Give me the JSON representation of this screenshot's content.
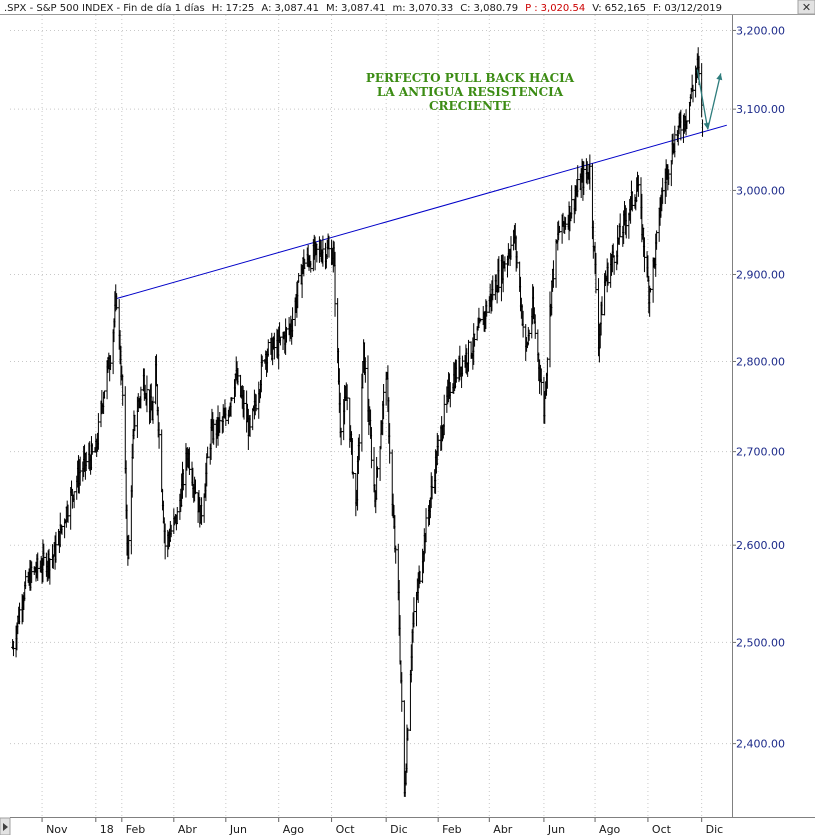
{
  "header": {
    "symbol": ".SPX - S&P 500 INDEX - Fin de día 1 días",
    "fields": [
      {
        "label": "H:",
        "value": "17:25",
        "red": false
      },
      {
        "label": "A:",
        "value": "3,087.41",
        "red": false
      },
      {
        "label": "M:",
        "value": "3,087.41",
        "red": false
      },
      {
        "label": "m:",
        "value": "3,070.33",
        "red": false
      },
      {
        "label": "C:",
        "value": "3,080.79",
        "red": false
      },
      {
        "label": "P :",
        "value": "3,020.54",
        "red": true
      },
      {
        "label": "V:",
        "value": "652,165",
        "red": false
      },
      {
        "label": "F:",
        "value": "03/12/2019",
        "red": false
      }
    ]
  },
  "chart_data": {
    "type": "line",
    "style": "ohlc-bars",
    "title": "",
    "xlabel": "",
    "ylabel": "",
    "ylim": [
      2330,
      3220
    ],
    "log_scale": true,
    "grid": true,
    "y_tick_labels": [
      "3,200.00",
      "3,100.00",
      "3,000.00",
      "2,900.00",
      "2,800.00",
      "2,700.00",
      "2,600.00",
      "2,500.00",
      "2,400.00"
    ],
    "y_tick_values": [
      3200,
      3100,
      3000,
      2900,
      2800,
      2700,
      2600,
      2500,
      2400
    ],
    "x_tick_labels": [
      "Nov",
      "18",
      "Feb",
      "Abr",
      "Jun",
      "Ago",
      "Oct",
      "Dic",
      "Feb",
      "Abr",
      "Jun",
      "Ago",
      "Oct",
      "Dic"
    ],
    "x_tick_dates": [
      "2017-11-01",
      "2018-01-02",
      "2018-02-01",
      "2018-04-02",
      "2018-06-01",
      "2018-08-01",
      "2018-10-01",
      "2018-12-03",
      "2019-02-01",
      "2019-04-01",
      "2019-06-03",
      "2019-08-01",
      "2019-10-01",
      "2019-12-02"
    ],
    "x_range": [
      "2017-09-25",
      "2020-01-06"
    ],
    "series": [
      {
        "name": "",
        "color": "#000000",
        "x": [
          "2017-09-28",
          "2017-10-10",
          "2017-10-20",
          "2017-11-01",
          "2017-11-15",
          "2017-11-30",
          "2017-12-15",
          "2018-01-02",
          "2018-01-10",
          "2018-01-19",
          "2018-01-26",
          "2018-02-02",
          "2018-02-08",
          "2018-02-15",
          "2018-02-26",
          "2018-03-08",
          "2018-03-12",
          "2018-03-23",
          "2018-04-06",
          "2018-04-18",
          "2018-05-03",
          "2018-05-15",
          "2018-06-01",
          "2018-06-12",
          "2018-06-29",
          "2018-07-16",
          "2018-08-01",
          "2018-08-15",
          "2018-08-29",
          "2018-09-20",
          "2018-10-03",
          "2018-10-11",
          "2018-10-19",
          "2018-10-29",
          "2018-11-07",
          "2018-11-20",
          "2018-12-03",
          "2018-12-10",
          "2018-12-17",
          "2018-12-24",
          "2019-01-02",
          "2019-01-15",
          "2019-02-01",
          "2019-02-15",
          "2019-03-01",
          "2019-03-15",
          "2019-04-01",
          "2019-04-15",
          "2019-04-30",
          "2019-05-13",
          "2019-05-21",
          "2019-06-03",
          "2019-06-12",
          "2019-06-20",
          "2019-07-01",
          "2019-07-15",
          "2019-07-26",
          "2019-08-05",
          "2019-08-12",
          "2019-08-23",
          "2019-09-10",
          "2019-09-19",
          "2019-10-02",
          "2019-10-09",
          "2019-10-17",
          "2019-11-01",
          "2019-11-15",
          "2019-11-27",
          "2019-12-02",
          "2019-12-03"
        ],
        "y": [
          2495,
          2550,
          2570,
          2580,
          2590,
          2640,
          2680,
          2700,
          2760,
          2810,
          2872,
          2760,
          2581,
          2730,
          2780,
          2740,
          2785,
          2600,
          2630,
          2700,
          2630,
          2720,
          2735,
          2785,
          2720,
          2810,
          2818,
          2840,
          2912,
          2930,
          2925,
          2730,
          2760,
          2640,
          2810,
          2650,
          2790,
          2640,
          2545,
          2351,
          2510,
          2600,
          2705,
          2775,
          2800,
          2820,
          2870,
          2905,
          2945,
          2810,
          2860,
          2745,
          2890,
          2950,
          2970,
          3010,
          3025,
          2825,
          2890,
          2925,
          2980,
          3005,
          2880,
          2920,
          2995,
          3065,
          3095,
          3154,
          3110,
          3081
        ]
      }
    ],
    "trendline": {
      "name": "",
      "color": "#0000c8",
      "x": [
        "2018-01-26",
        "2019-12-31"
      ],
      "y": [
        2872,
        3080
      ]
    },
    "annotations": {
      "text_lines": [
        "PERFECTO PULL BACK HACIA",
        "LA ANTIGUA RESISTENCIA",
        "CRECIENTE"
      ],
      "text_color": "#3c8c14",
      "arrow_color": "#2f7d7d",
      "arrow_points": [
        {
          "x": "2019-11-27",
          "y": 3150
        },
        {
          "x": "2019-12-09",
          "y": 3075
        },
        {
          "x": "2019-12-24",
          "y": 3145
        }
      ]
    }
  }
}
